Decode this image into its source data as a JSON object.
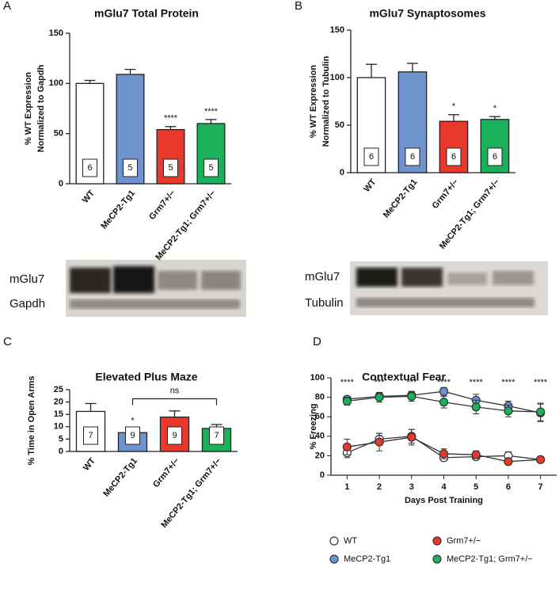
{
  "chart_data": [
    {
      "type": "bar",
      "panel": "A",
      "title": "mGlu7 Total Protein",
      "ylabel": [
        "% WT Expression",
        "Normalized to Gapdh"
      ],
      "categories": [
        "WT",
        "MeCP2-Tg1",
        "Grm7+/−",
        "MeCP2-Tg1; Grm7+/−"
      ],
      "values": [
        100,
        109,
        54,
        60
      ],
      "errors": [
        3,
        5,
        3,
        4
      ],
      "n_labels": [
        6,
        5,
        5,
        5
      ],
      "sig_labels": [
        null,
        null,
        "****",
        "****"
      ],
      "colors": [
        "#ffffff",
        "#6f94cd",
        "#e8392c",
        "#1bb05a"
      ],
      "ylim": [
        0,
        150
      ],
      "yticks": [
        0,
        50,
        100,
        150
      ],
      "blot_labels": [
        "mGlu7",
        "Gapdh"
      ]
    },
    {
      "type": "bar",
      "panel": "B",
      "title": "mGlu7 Synaptosomes",
      "ylabel": [
        "% WT Expression",
        "Normalized to Tubulin"
      ],
      "categories": [
        "WT",
        "MeCP2-Tg1",
        "Grm7+/−",
        "MeCP2-Tg1; Grm7+/−"
      ],
      "values": [
        100,
        106,
        54,
        56
      ],
      "errors": [
        14,
        9,
        7,
        3
      ],
      "n_labels": [
        6,
        6,
        6,
        6
      ],
      "sig_labels": [
        null,
        null,
        "*",
        "*"
      ],
      "colors": [
        "#ffffff",
        "#6f94cd",
        "#e8392c",
        "#1bb05a"
      ],
      "ylim": [
        0,
        150
      ],
      "yticks": [
        0,
        50,
        100,
        150
      ],
      "blot_labels": [
        "mGlu7",
        "Tubulin"
      ]
    },
    {
      "type": "bar",
      "panel": "C",
      "title": "Elevated Plus Maze",
      "ylabel": [
        "% Time in Open Arms"
      ],
      "categories": [
        "WT",
        "MeCP2-Tg1",
        "Grm7+/−",
        "MeCP2-Tg1; Grm7+/−"
      ],
      "values": [
        16.2,
        7.6,
        13.9,
        9.3
      ],
      "errors": [
        3.2,
        1.5,
        2.5,
        1.6
      ],
      "n_labels": [
        7,
        9,
        9,
        7
      ],
      "sig_labels": [
        null,
        "*",
        null,
        null
      ],
      "colors": [
        "#ffffff",
        "#6f94cd",
        "#e8392c",
        "#1bb05a"
      ],
      "ylim": [
        0,
        25
      ],
      "yticks": [
        0,
        5,
        10,
        15,
        20,
        25
      ],
      "bracket_label": "ns"
    },
    {
      "type": "line",
      "panel": "D",
      "title": "Contextual Fear",
      "ylabel": "% Freezing",
      "xlabel": "Days Post Training",
      "x": [
        1,
        2,
        3,
        4,
        5,
        6,
        7
      ],
      "xlim": [
        0.5,
        7.5
      ],
      "xticks": [
        1,
        2,
        3,
        4,
        5,
        6,
        7
      ],
      "ylim": [
        0,
        100
      ],
      "yticks": [
        0,
        20,
        40,
        60,
        80,
        100
      ],
      "sig_labels": [
        "****",
        "***",
        "***",
        "****",
        "****",
        "****",
        "****"
      ],
      "series": [
        {
          "name": "WT",
          "color": "#ffffff",
          "values": [
            23,
            37,
            40,
            18,
            19,
            20,
            16
          ],
          "errors": [
            5,
            6,
            7,
            3,
            3,
            4,
            3
          ]
        },
        {
          "name": "MeCP2-Tg1",
          "color": "#6f94cd",
          "values": [
            78,
            81,
            82,
            86,
            77,
            71,
            64
          ],
          "errors": [
            3,
            4,
            4,
            4,
            6,
            5,
            9
          ]
        },
        {
          "name": "Grm7+/−",
          "color": "#e8392c",
          "values": [
            29,
            34,
            39,
            22,
            21,
            14,
            16
          ],
          "errors": [
            8,
            9,
            8,
            5,
            4,
            3,
            3
          ]
        },
        {
          "name": "MeCP2-Tg1; Grm7+/−",
          "color": "#1bb05a",
          "values": [
            76,
            80,
            81,
            75,
            70,
            66,
            65
          ],
          "errors": [
            4,
            5,
            5,
            6,
            7,
            6,
            9
          ]
        }
      ]
    }
  ]
}
